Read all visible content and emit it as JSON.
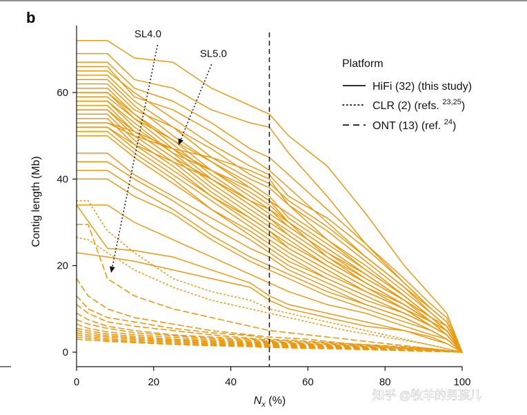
{
  "panel_label": "b",
  "watermark": "知乎 @牧羊的男孩儿",
  "colors": {
    "series": "#E99A11",
    "axis": "#111111",
    "text": "#111111"
  },
  "chart_data": {
    "type": "line",
    "title": "",
    "xlabel_main": "N",
    "xlabel_sub": "x",
    "xlabel_unit": " (%)",
    "ylabel": "Contig length (Mb)",
    "xlim": [
      0,
      100
    ],
    "ylim": [
      -2,
      75
    ],
    "xticks": [
      "0",
      "20",
      "40",
      "60",
      "80",
      "100"
    ],
    "yticks": [
      "0",
      "20",
      "40",
      "60"
    ],
    "grid": false,
    "legend": {
      "title": "Platform",
      "position": "top-right",
      "entries": [
        {
          "label": "HiFi (32) (this study)",
          "style": "solid"
        },
        {
          "label": "CLR (2) (refs. ",
          "sup": "23,25",
          "close": ")",
          "style": "dotted"
        },
        {
          "label": "ONT (13) (ref. ",
          "sup": "24",
          "close": ")",
          "style": "dashed"
        }
      ]
    },
    "reference_line": {
      "x": 50,
      "style": "dashed"
    },
    "annotations": [
      {
        "text": "SL4.0",
        "text_at": [
          18.5,
          72.8
        ],
        "arrow_from": [
          21,
          71
        ],
        "arrow_to": [
          9,
          18.5
        ]
      },
      {
        "text": "SL5.0",
        "text_at": [
          35.5,
          68.2
        ],
        "arrow_from": [
          35,
          66.5
        ],
        "arrow_to": [
          26.5,
          48
        ]
      }
    ],
    "series_groups": [
      {
        "name": "HiFi",
        "style": "solid",
        "x": [
          0,
          8,
          15,
          25,
          35,
          45,
          50,
          55,
          65,
          75,
          85,
          92,
          96,
          100
        ],
        "series": [
          {
            "values": [
              72,
              72,
              68,
              67,
              61,
              57,
              55,
              50,
              43,
              32,
              20,
              13,
              9,
              0
            ]
          },
          {
            "values": [
              69,
              69,
              63,
              61,
              56,
              53,
              52,
              46,
              36,
              25,
              16,
              10,
              7,
              0
            ]
          },
          {
            "values": [
              67,
              67,
              61,
              58,
              53,
              47,
              45,
              41,
              33,
              25,
              17,
              11,
              8,
              0
            ]
          },
          {
            "values": [
              66,
              66,
              59,
              56,
              51,
              45,
              42,
              38,
              30,
              22,
              15,
              10,
              7,
              0
            ]
          },
          {
            "values": [
              65,
              65,
              60,
              54,
              48,
              43,
              41,
              36,
              31,
              24,
              16,
              10,
              7,
              0
            ]
          },
          {
            "values": [
              64,
              64,
              58,
              52,
              45,
              40,
              38,
              34,
              28,
              21,
              14,
              9,
              6,
              0
            ]
          },
          {
            "values": [
              63,
              63,
              57,
              50,
              44,
              38,
              35,
              32,
              26,
              20,
              13,
              8,
              6,
              0
            ]
          },
          {
            "values": [
              62,
              62,
              56,
              52,
              47,
              41,
              39,
              35,
              29,
              22,
              15,
              9,
              6,
              0
            ]
          },
          {
            "values": [
              61,
              61,
              55,
              49,
              42,
              36,
              33,
              30,
              24,
              18,
              12,
              8,
              5,
              0
            ]
          },
          {
            "values": [
              60,
              60,
              54,
              47,
              40,
              34,
              31,
              28,
              22,
              17,
              12,
              7,
              5,
              0
            ]
          },
          {
            "values": [
              60,
              60,
              55,
              48,
              41,
              35,
              32,
              29,
              23,
              18,
              12,
              8,
              5,
              0
            ]
          },
          {
            "values": [
              59,
              59,
              54,
              49,
              44,
              39,
              36,
              31,
              25,
              19,
              13,
              8,
              5,
              0
            ]
          },
          {
            "values": [
              58,
              58,
              53,
              46,
              39,
              33,
              30,
              27,
              21,
              16,
              11,
              7,
              5,
              0
            ]
          },
          {
            "values": [
              58,
              58,
              52,
              46,
              42,
              37,
              34,
              30,
              24,
              18,
              12,
              8,
              5,
              0
            ]
          },
          {
            "values": [
              57,
              57,
              51,
              45,
              38,
              32,
              29,
              26,
              20,
              15,
              11,
              7,
              4,
              0
            ]
          },
          {
            "values": [
              56,
              56,
              50,
              44,
              37,
              31,
              28,
              25,
              20,
              15,
              10,
              7,
              4,
              0
            ]
          },
          {
            "values": [
              56,
              56,
              51,
              45,
              40,
              35,
              33,
              29,
              23,
              17,
              12,
              8,
              5,
              0
            ]
          },
          {
            "values": [
              55,
              55,
              49,
              43,
              36,
              30,
              27,
              24,
              19,
              14,
              10,
              6,
              4,
              0
            ]
          },
          {
            "values": [
              54,
              54,
              48,
              42,
              36,
              31,
              28,
              24,
              19,
              14,
              10,
              6,
              4,
              0
            ]
          },
          {
            "values": [
              53,
              53,
              50,
              47,
              42,
              38,
              35,
              30,
              22,
              16,
              11,
              7,
              5,
              0
            ]
          },
          {
            "values": [
              53,
              53,
              51,
              47,
              45,
              42,
              40,
              34,
              26,
              19,
              13,
              8,
              5,
              0
            ]
          },
          {
            "values": [
              52,
              52,
              47,
              41,
              35,
              29,
              26,
              23,
              18,
              14,
              10,
              6,
              4,
              0
            ]
          },
          {
            "values": [
              52,
              52,
              48,
              44,
              40,
              34,
              31,
              27,
              21,
              16,
              11,
              7,
              5,
              0
            ]
          },
          {
            "values": [
              51,
              51,
              46,
              40,
              33,
              28,
              25,
              22,
              17,
              13,
              9,
              6,
              4,
              0
            ]
          },
          {
            "values": [
              50,
              50,
              45,
              39,
              33,
              27,
              24,
              21,
              17,
              13,
              9,
              6,
              4,
              0
            ]
          },
          {
            "values": [
              46,
              46,
              41,
              36,
              31,
              26,
              23,
              20,
              16,
              12,
              9,
              6,
              4,
              0
            ]
          },
          {
            "values": [
              44,
              44,
              40,
              35,
              29,
              24,
              22,
              19,
              15,
              11,
              8,
              5,
              3,
              0
            ]
          },
          {
            "values": [
              42,
              42,
              38,
              33,
              27,
              22,
              20,
              18,
              14,
              11,
              8,
              5,
              3,
              0
            ]
          },
          {
            "values": [
              40,
              40,
              36,
              32,
              26,
              21,
              19,
              17,
              13,
              10,
              7,
              5,
              3,
              0
            ]
          },
          {
            "values": [
              34,
              34,
              30,
              26,
              22,
              18,
              16,
              14,
              11,
              9,
              6,
              4,
              3,
              0
            ]
          },
          {
            "values": [
              34,
              24,
              23.5,
              22,
              19,
              16,
              13,
              11,
              9,
              7,
              5,
              3.5,
              2,
              0
            ]
          },
          {
            "values": [
              23,
              22,
              21,
              19,
              17,
              15,
              12,
              10,
              8,
              6,
              5,
              3,
              2,
              0
            ]
          }
        ]
      },
      {
        "name": "CLR",
        "style": "dotted",
        "x": [
          0,
          3,
          8,
          15,
          25,
          35,
          45,
          50,
          60,
          70,
          80,
          90,
          100
        ],
        "series": [
          {
            "values": [
              35,
              35,
              28,
              23,
              17,
              14,
              12,
              10,
              8,
              6,
              4,
              2,
              0
            ]
          },
          {
            "values": [
              26.5,
              26,
              23,
              19,
              15,
              12,
              10,
              9,
              7,
              5,
              3.5,
              2,
              0
            ]
          }
        ]
      },
      {
        "name": "ONT",
        "style": "dashed",
        "x": [
          0,
          3,
          8,
          15,
          25,
          35,
          45,
          50,
          60,
          70,
          80,
          90,
          100
        ],
        "series": [
          {
            "values": [
              29.5,
              29.5,
              17,
              13,
              10,
              8,
              6,
              5,
              4,
              3,
              2,
              1,
              0
            ]
          },
          {
            "values": [
              17,
              13,
              10,
              8,
              6.5,
              5,
              4,
              3.5,
              3,
              2,
              1.5,
              1,
              0
            ]
          },
          {
            "values": [
              13,
              10,
              8,
              7,
              5.5,
              4.5,
              3.8,
              3,
              2.5,
              2,
              1.4,
              0.8,
              0
            ]
          },
          {
            "values": [
              11,
              9,
              7,
              6,
              5,
              4,
              3.2,
              2.8,
              2.3,
              1.8,
              1.2,
              0.7,
              0
            ]
          },
          {
            "values": [
              9,
              7.5,
              6,
              5,
              4,
              3.5,
              3,
              2.5,
              2,
              1.6,
              1.1,
              0.6,
              0
            ]
          },
          {
            "values": [
              7.5,
              6.5,
              5.5,
              4.5,
              3.8,
              3.2,
              2.7,
              2.3,
              1.9,
              1.5,
              1,
              0.5,
              0
            ]
          },
          {
            "values": [
              6.5,
              5.5,
              4.7,
              4,
              3.4,
              2.9,
              2.4,
              2.1,
              1.7,
              1.3,
              0.9,
              0.5,
              0
            ]
          },
          {
            "values": [
              5.5,
              5,
              4.2,
              3.6,
              3,
              2.6,
              2.2,
              1.9,
              1.5,
              1.2,
              0.8,
              0.4,
              0
            ]
          },
          {
            "values": [
              5,
              4.5,
              3.8,
              3.3,
              2.8,
              2.4,
              2,
              1.7,
              1.4,
              1.1,
              0.7,
              0.4,
              0
            ]
          },
          {
            "values": [
              4.5,
              4,
              3.5,
              3,
              2.5,
              2.1,
              1.8,
              1.6,
              1.3,
              1,
              0.7,
              0.3,
              0
            ]
          },
          {
            "values": [
              4,
              3.6,
              3.1,
              2.7,
              2.3,
              1.9,
              1.6,
              1.4,
              1.1,
              0.9,
              0.6,
              0.3,
              0
            ]
          },
          {
            "values": [
              3.5,
              3.2,
              2.8,
              2.4,
              2,
              1.7,
              1.5,
              1.3,
              1,
              0.8,
              0.5,
              0.3,
              0
            ]
          },
          {
            "values": [
              3,
              2.8,
              2.5,
              2.2,
              1.8,
              1.5,
              1.3,
              1.1,
              0.9,
              0.7,
              0.5,
              0.2,
              0
            ]
          }
        ]
      }
    ]
  }
}
